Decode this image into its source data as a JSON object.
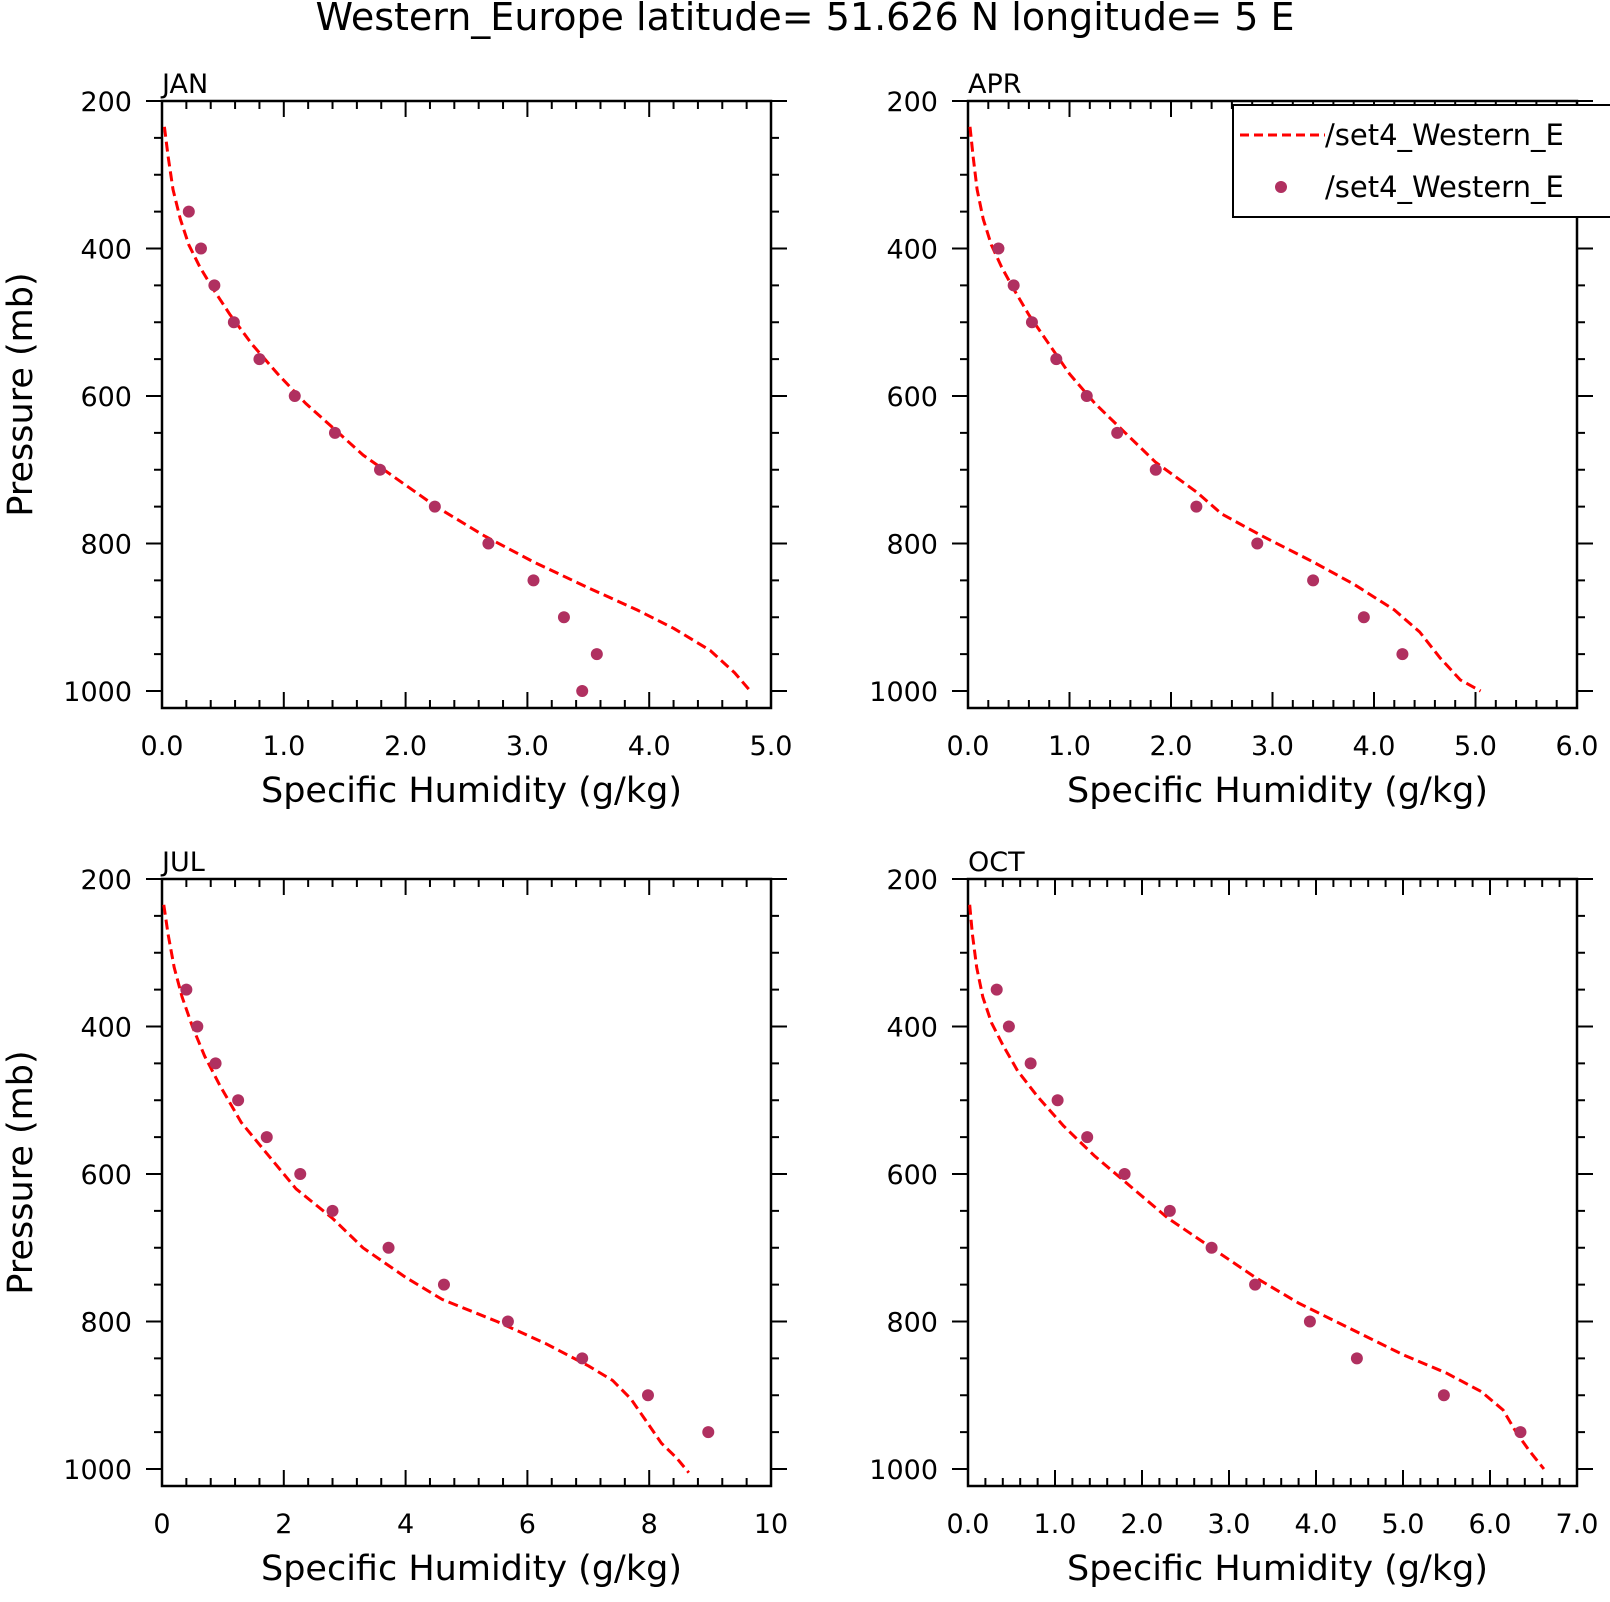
{
  "figure_title": "Western_Europe  latitude= 51.626 N longitude= 5 E",
  "legend": {
    "line_label": "/set4_Western_E",
    "marker_label": "/set4_Western_E"
  },
  "colors": {
    "line": "#ff0000",
    "marker": "#b03060",
    "axes": "#000000"
  },
  "chart_data": [
    {
      "type": "line",
      "panel": "JAN",
      "xlabel": "Specific Humidity (g/kg)",
      "ylabel": "Pressure (mb)",
      "xlim": [
        0,
        5
      ],
      "ylim": [
        200,
        1000
      ],
      "y_inverted": true,
      "xticks": [
        0,
        1,
        2,
        3,
        4,
        5
      ],
      "xtick_labels": [
        "0.0",
        "1.0",
        "2.0",
        "3.0",
        "4.0",
        "5.0"
      ],
      "yticks": [
        200,
        400,
        600,
        800,
        1000
      ],
      "ytick_labels": [
        "200",
        "400",
        "600",
        "800",
        "1000"
      ],
      "legend_shown": false,
      "series": [
        {
          "name": "/set4_Western_E",
          "style": "dashed-line",
          "x": [
            0.02,
            0.05,
            0.09,
            0.15,
            0.22,
            0.31,
            0.42,
            0.56,
            0.74,
            0.95,
            1.18,
            1.45,
            1.65,
            1.95,
            2.25,
            2.65,
            3.05,
            3.5,
            3.9,
            4.2,
            4.5,
            4.7,
            4.83
          ],
          "y": [
            235,
            275,
            320,
            360,
            395,
            425,
            455,
            490,
            530,
            570,
            610,
            650,
            680,
            715,
            750,
            790,
            825,
            860,
            890,
            915,
            945,
            975,
            1000
          ]
        },
        {
          "name": "/set4_Western_E",
          "style": "markers",
          "x": [
            0.22,
            0.32,
            0.43,
            0.59,
            0.8,
            1.09,
            1.42,
            1.79,
            2.24,
            2.68,
            3.05,
            3.3,
            3.57,
            3.45
          ],
          "y": [
            350,
            400,
            450,
            500,
            550,
            600,
            650,
            700,
            750,
            800,
            850,
            900,
            950,
            1000
          ]
        }
      ]
    },
    {
      "type": "line",
      "panel": "APR",
      "xlabel": "Specific Humidity (g/kg)",
      "ylabel": "",
      "xlim": [
        0,
        6
      ],
      "ylim": [
        200,
        1000
      ],
      "y_inverted": true,
      "xticks": [
        0,
        1,
        2,
        3,
        4,
        5,
        6
      ],
      "xtick_labels": [
        "0.0",
        "1.0",
        "2.0",
        "3.0",
        "4.0",
        "5.0",
        "6.0"
      ],
      "yticks": [
        200,
        400,
        600,
        800,
        1000
      ],
      "ytick_labels": [
        "200",
        "400",
        "600",
        "800",
        "1000"
      ],
      "legend_shown": true,
      "legend_position": "top-right",
      "series": [
        {
          "name": "/set4_Western_E",
          "style": "dashed-line",
          "x": [
            0.02,
            0.05,
            0.09,
            0.15,
            0.23,
            0.33,
            0.45,
            0.6,
            0.8,
            1.0,
            1.25,
            1.55,
            1.85,
            2.25,
            2.5,
            2.9,
            3.4,
            3.8,
            4.2,
            4.45,
            4.65,
            4.85,
            5.05
          ],
          "y": [
            235,
            275,
            320,
            360,
            395,
            425,
            455,
            490,
            530,
            570,
            610,
            650,
            690,
            730,
            760,
            790,
            825,
            855,
            890,
            920,
            955,
            985,
            1000
          ]
        },
        {
          "name": "/set4_Western_E",
          "style": "markers",
          "x": [
            0.3,
            0.45,
            0.63,
            0.87,
            1.17,
            1.47,
            1.85,
            2.25,
            2.85,
            3.4,
            3.9,
            4.28
          ],
          "y": [
            400,
            450,
            500,
            550,
            600,
            650,
            700,
            750,
            800,
            850,
            900,
            950
          ]
        }
      ]
    },
    {
      "type": "line",
      "panel": "JUL",
      "xlabel": "Specific Humidity (g/kg)",
      "ylabel": "Pressure (mb)",
      "xlim": [
        0,
        10
      ],
      "ylim": [
        200,
        1000
      ],
      "y_inverted": true,
      "xticks": [
        0,
        2,
        4,
        6,
        8,
        10
      ],
      "xtick_labels": [
        "0",
        "2",
        "4",
        "6",
        "8",
        "10"
      ],
      "yticks": [
        200,
        400,
        600,
        800,
        1000
      ],
      "ytick_labels": [
        "200",
        "400",
        "600",
        "800",
        "1000"
      ],
      "legend_shown": false,
      "series": [
        {
          "name": "/set4_Western_E",
          "style": "dashed-line",
          "x": [
            0.03,
            0.1,
            0.2,
            0.33,
            0.5,
            0.7,
            0.95,
            1.3,
            1.7,
            2.2,
            2.8,
            3.3,
            4.0,
            4.6,
            5.5,
            6.3,
            7.0,
            7.4,
            7.7,
            7.95,
            8.2,
            8.45,
            8.65
          ],
          "y": [
            235,
            275,
            320,
            360,
            400,
            440,
            480,
            530,
            570,
            620,
            660,
            700,
            740,
            770,
            800,
            830,
            860,
            880,
            905,
            935,
            965,
            985,
            1005
          ]
        },
        {
          "name": "/set4_Western_E",
          "style": "markers",
          "x": [
            0.4,
            0.58,
            0.88,
            1.25,
            1.72,
            2.27,
            2.8,
            3.72,
            4.63,
            5.68,
            6.9,
            7.98,
            8.97
          ],
          "y": [
            350,
            400,
            450,
            500,
            550,
            600,
            650,
            700,
            750,
            800,
            850,
            900,
            950
          ]
        }
      ]
    },
    {
      "type": "line",
      "panel": "OCT",
      "xlabel": "Specific Humidity (g/kg)",
      "ylabel": "",
      "xlim": [
        0,
        7
      ],
      "ylim": [
        200,
        1000
      ],
      "y_inverted": true,
      "xticks": [
        0,
        1,
        2,
        3,
        4,
        5,
        6,
        7
      ],
      "xtick_labels": [
        "0.0",
        "1.0",
        "2.0",
        "3.0",
        "4.0",
        "5.0",
        "6.0",
        "7.0"
      ],
      "yticks": [
        200,
        400,
        600,
        800,
        1000
      ],
      "ytick_labels": [
        "200",
        "400",
        "600",
        "800",
        "1000"
      ],
      "legend_shown": false,
      "series": [
        {
          "name": "/set4_Western_E",
          "style": "dashed-line",
          "x": [
            0.02,
            0.05,
            0.1,
            0.17,
            0.27,
            0.4,
            0.57,
            0.8,
            1.1,
            1.45,
            1.9,
            2.3,
            2.8,
            3.3,
            3.8,
            4.4,
            5.0,
            5.5,
            5.9,
            6.15,
            6.3,
            6.45,
            6.62
          ],
          "y": [
            235,
            275,
            320,
            360,
            395,
            425,
            460,
            495,
            535,
            575,
            620,
            660,
            700,
            740,
            775,
            810,
            845,
            870,
            895,
            920,
            950,
            975,
            1000
          ]
        },
        {
          "name": "/set4_Western_E",
          "style": "markers",
          "x": [
            0.33,
            0.47,
            0.72,
            1.03,
            1.37,
            1.8,
            2.32,
            2.8,
            3.3,
            3.93,
            4.47,
            5.47,
            6.35
          ],
          "y": [
            350,
            400,
            450,
            500,
            550,
            600,
            650,
            700,
            750,
            800,
            850,
            900,
            950
          ]
        }
      ]
    }
  ]
}
